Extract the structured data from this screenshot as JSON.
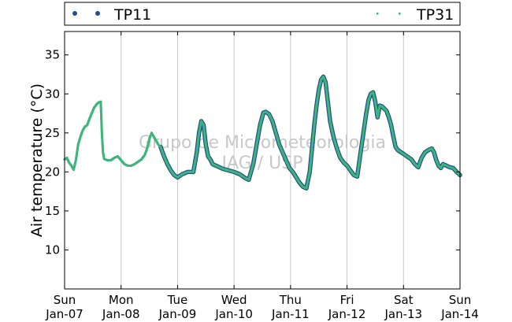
{
  "chart_data": {
    "type": "scatter",
    "ylabel": "Air temperature (°C)",
    "xlabel": "",
    "watermark": [
      "Grupo de Micrometeorologia",
      "IAG / USP"
    ],
    "ylim": [
      5,
      38
    ],
    "yticks": [
      10,
      15,
      20,
      25,
      30,
      35
    ],
    "xlim": [
      0,
      7
    ],
    "xticks": [
      {
        "x": 0,
        "day": "Sun",
        "date": "Jan-07"
      },
      {
        "x": 1,
        "day": "Mon",
        "date": "Jan-08"
      },
      {
        "x": 2,
        "day": "Tue",
        "date": "Jan-09"
      },
      {
        "x": 3,
        "day": "Wed",
        "date": "Jan-10"
      },
      {
        "x": 4,
        "day": "Thu",
        "date": "Jan-11"
      },
      {
        "x": 5,
        "day": "Fri",
        "date": "Jan-12"
      },
      {
        "x": 6,
        "day": "Sat",
        "date": "Jan-13"
      },
      {
        "x": 7,
        "day": "Sun",
        "date": "Jan-14"
      }
    ],
    "grid": "vertical",
    "legend_position": "top",
    "series": [
      {
        "name": "TP11",
        "color": "#1f4e8c",
        "marker": "large-dot",
        "x": [
          1.7,
          1.76,
          1.82,
          1.88,
          1.94,
          2.0,
          2.08,
          2.18,
          2.28,
          2.34,
          2.38,
          2.42,
          2.46,
          2.5,
          2.54,
          2.58,
          2.62,
          2.68,
          2.74,
          2.8,
          2.9,
          3.0,
          3.1,
          3.2,
          3.26,
          3.34,
          3.4,
          3.46,
          3.52,
          3.56,
          3.62,
          3.68,
          3.74,
          3.8,
          3.86,
          3.92,
          3.98,
          4.04,
          4.1,
          4.16,
          4.22,
          4.28,
          4.34,
          4.38,
          4.42,
          4.46,
          4.5,
          4.54,
          4.58,
          4.62,
          4.66,
          4.7,
          4.76,
          4.82,
          4.88,
          4.94,
          5.0,
          5.06,
          5.12,
          5.18,
          5.24,
          5.3,
          5.34,
          5.38,
          5.42,
          5.46,
          5.5,
          5.54,
          5.58,
          5.62,
          5.66,
          5.7,
          5.74,
          5.78,
          5.82,
          5.86,
          5.9,
          5.96,
          6.02,
          6.08,
          6.14,
          6.2,
          6.26,
          6.32,
          6.38,
          6.44,
          6.5,
          6.54,
          6.58,
          6.62,
          6.66,
          6.7,
          6.76,
          6.82,
          6.88,
          6.94,
          7.0
        ],
        "y": [
          23.2,
          22.0,
          21.0,
          20.2,
          19.6,
          19.3,
          19.7,
          20.0,
          20.0,
          22.5,
          25.0,
          26.5,
          26.0,
          23.5,
          22.0,
          21.6,
          21.0,
          20.8,
          20.6,
          20.4,
          20.2,
          20.0,
          19.7,
          19.2,
          19.0,
          21.0,
          23.5,
          26.0,
          27.6,
          27.7,
          27.4,
          26.5,
          25.0,
          23.5,
          22.5,
          21.5,
          20.5,
          20.0,
          19.3,
          18.6,
          18.1,
          17.9,
          20.0,
          23.0,
          26.0,
          28.5,
          30.5,
          31.8,
          32.2,
          31.5,
          29.0,
          26.5,
          24.5,
          23.0,
          21.8,
          21.2,
          20.8,
          20.2,
          19.6,
          19.4,
          22.5,
          25.5,
          27.5,
          29.2,
          30.0,
          30.2,
          29.0,
          27.0,
          28.5,
          28.4,
          28.1,
          27.8,
          27.0,
          26.0,
          24.5,
          23.2,
          22.8,
          22.5,
          22.2,
          21.9,
          21.6,
          21.0,
          20.6,
          21.8,
          22.5,
          22.8,
          23.0,
          22.5,
          21.5,
          20.8,
          20.5,
          21.0,
          20.8,
          20.6,
          20.5,
          20.0,
          19.6
        ]
      },
      {
        "name": "TP31",
        "color": "#3fb57c",
        "marker": "small-dot",
        "x": [
          0.0,
          0.04,
          0.08,
          0.12,
          0.16,
          0.2,
          0.24,
          0.28,
          0.32,
          0.36,
          0.4,
          0.44,
          0.48,
          0.52,
          0.56,
          0.6,
          0.64,
          0.66,
          0.68,
          0.7,
          0.72,
          0.76,
          0.82,
          0.88,
          0.94,
          1.0,
          1.06,
          1.12,
          1.18,
          1.24,
          1.3,
          1.36,
          1.42,
          1.46,
          1.5,
          1.54,
          1.58,
          1.62,
          1.66,
          1.7,
          1.76,
          1.82,
          1.88,
          1.94,
          2.0,
          2.08,
          2.18,
          2.28,
          2.34,
          2.38,
          2.42,
          2.46,
          2.5,
          2.54,
          2.58,
          2.62,
          2.68,
          2.74,
          2.8,
          2.9,
          3.0,
          3.1,
          3.2,
          3.26,
          3.34,
          3.4,
          3.46,
          3.52,
          3.56,
          3.62,
          3.68,
          3.74,
          3.8,
          3.86,
          3.92,
          3.98,
          4.04,
          4.1,
          4.16,
          4.22,
          4.28,
          4.34,
          4.38,
          4.42,
          4.46,
          4.5,
          4.54,
          4.58,
          4.62,
          4.66,
          4.7,
          4.76,
          4.82,
          4.88,
          4.94,
          5.0,
          5.06,
          5.12,
          5.18,
          5.24,
          5.3,
          5.34,
          5.38,
          5.42,
          5.46,
          5.5,
          5.54,
          5.58,
          5.62,
          5.66,
          5.7,
          5.74,
          5.78,
          5.82,
          5.86,
          5.9,
          5.96,
          6.02,
          6.08,
          6.14,
          6.2,
          6.26,
          6.32,
          6.38,
          6.44,
          6.5,
          6.54,
          6.58,
          6.62,
          6.66,
          6.7,
          6.76,
          6.82,
          6.88,
          6.94,
          7.0
        ],
        "y": [
          21.6,
          21.8,
          21.2,
          20.8,
          20.3,
          21.5,
          23.5,
          24.5,
          25.3,
          25.8,
          26.0,
          26.8,
          27.5,
          28.2,
          28.6,
          28.9,
          29.0,
          25.0,
          22.5,
          21.7,
          21.6,
          21.5,
          21.5,
          21.8,
          22.0,
          21.5,
          21.0,
          20.8,
          20.8,
          21.0,
          21.3,
          21.6,
          22.2,
          23.0,
          24.2,
          25.0,
          24.5,
          24.0,
          23.5,
          23.2,
          22.0,
          21.0,
          20.2,
          19.6,
          19.3,
          19.7,
          20.0,
          20.0,
          22.5,
          25.0,
          26.5,
          26.0,
          23.5,
          22.0,
          21.6,
          21.0,
          20.8,
          20.6,
          20.4,
          20.2,
          20.0,
          19.7,
          19.2,
          19.0,
          21.0,
          23.5,
          26.0,
          27.6,
          27.7,
          27.4,
          26.5,
          25.0,
          23.5,
          22.5,
          21.5,
          20.5,
          20.0,
          19.3,
          18.6,
          18.1,
          17.9,
          20.0,
          23.0,
          26.0,
          28.5,
          30.5,
          31.8,
          32.2,
          31.5,
          29.0,
          26.5,
          24.5,
          23.0,
          21.8,
          21.2,
          20.8,
          20.2,
          19.6,
          19.4,
          22.5,
          25.5,
          27.5,
          29.2,
          30.0,
          30.2,
          29.0,
          27.0,
          28.5,
          28.4,
          28.1,
          27.8,
          27.0,
          26.0,
          24.5,
          23.2,
          22.8,
          22.5,
          22.2,
          21.9,
          21.6,
          21.0,
          20.6,
          21.8,
          22.5,
          22.8,
          23.0,
          22.5,
          21.5,
          20.8,
          20.5,
          21.0,
          20.8,
          20.6,
          20.5,
          20.0,
          19.6
        ]
      }
    ]
  }
}
